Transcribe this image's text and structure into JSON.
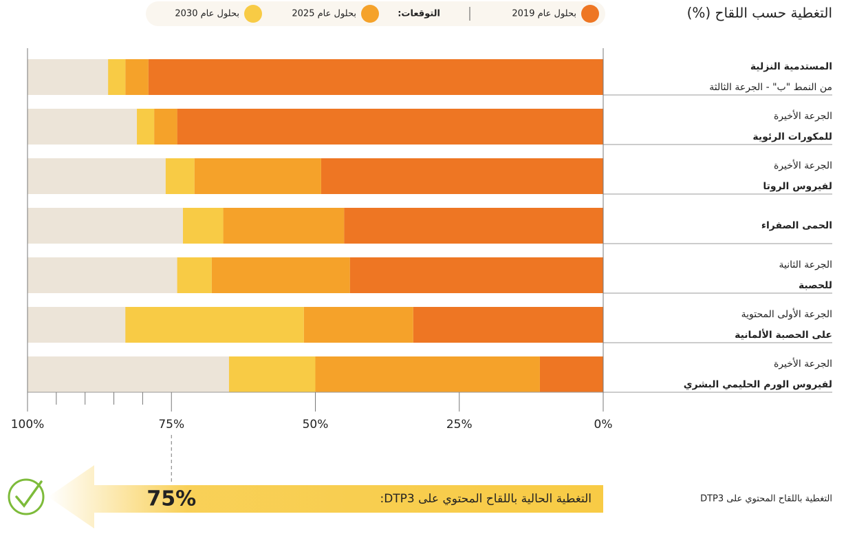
{
  "chart_data": {
    "type": "stacked_bar_horizontal",
    "title": "التغطية حسب اللقاح (%)",
    "legend_group_label": "التوقعات:",
    "categories": [
      {
        "lines": [
          "المستدمية النزلية",
          "من النمط \"ب\" - الجرعة الثالثة"
        ],
        "bold": 0
      },
      {
        "lines": [
          "الجرعة الأخيرة",
          "للمكورات الرئوية"
        ],
        "bold": 1
      },
      {
        "lines": [
          "الجرعة الأخيرة",
          "لفيروس الروتا"
        ],
        "bold": 1
      },
      {
        "lines": [
          "الحمى الصفراء"
        ],
        "bold": 0
      },
      {
        "lines": [
          "الجرعة الثانية",
          "للحصبة"
        ],
        "bold": 1
      },
      {
        "lines": [
          "الجرعة الأولى المحتوية",
          "على الحصبة الألمانية"
        ],
        "bold": 1
      },
      {
        "lines": [
          "الجرعة الأخيرة",
          "لفيروس الورم الحليمي البشري"
        ],
        "bold": 1
      }
    ],
    "series": [
      {
        "name": "بحلول عام 2019",
        "color": "#ee7623",
        "values": [
          79,
          74,
          49,
          45,
          44,
          33,
          11
        ]
      },
      {
        "name": "بحلول عام 2025",
        "color": "#f5a22a",
        "values": [
          4,
          4,
          22,
          21,
          24,
          19,
          39
        ]
      },
      {
        "name": "بحلول عام 2030",
        "color": "#f8cb45",
        "values": [
          3,
          3,
          5,
          7,
          6,
          31,
          15
        ]
      }
    ],
    "track_color": "#ece4d8",
    "xlim": [
      0,
      100
    ],
    "x_reversed": true,
    "xticks": [
      {
        "value": 100,
        "label": "100%"
      },
      {
        "value": 75,
        "label": "75%"
      },
      {
        "value": 50,
        "label": "50%"
      },
      {
        "value": 25,
        "label": "25%"
      },
      {
        "value": 0,
        "label": "0%"
      }
    ],
    "minor_xticks": [
      95,
      90,
      85,
      80
    ],
    "reference": {
      "value": 75,
      "label": "75%",
      "text": "التغطية الحالية باللقاح المحتوي على DTP3:",
      "side_label": "التغطية باللقاح المحتوي على DTP3"
    }
  }
}
